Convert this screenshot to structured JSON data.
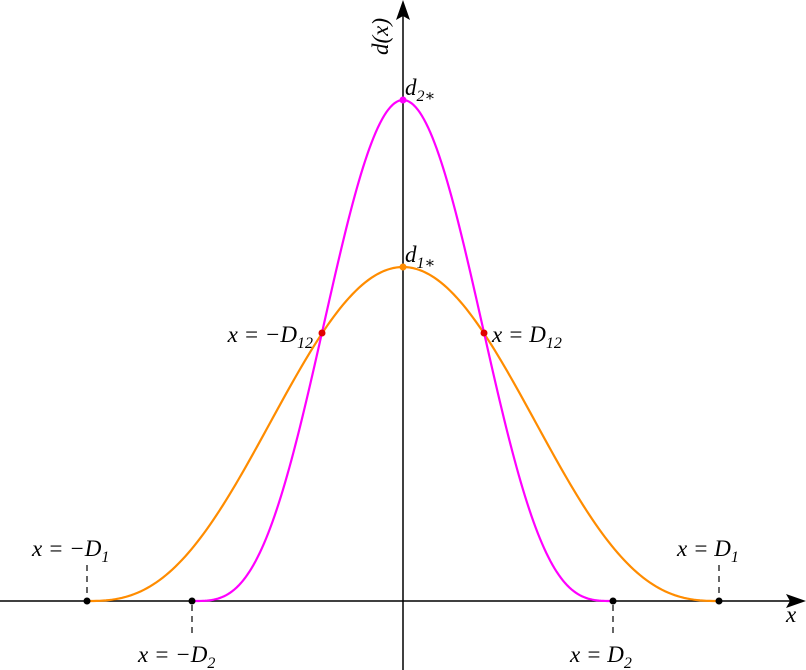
{
  "axes": {
    "x_label": "x",
    "y_label": "d(x)"
  },
  "peaks": [
    {
      "label": "d",
      "sub": "2∗"
    },
    {
      "label": "d",
      "sub": "1∗"
    }
  ],
  "intersections": [
    {
      "label": "x = −D",
      "sub": "12"
    },
    {
      "label": "x = D",
      "sub": "12"
    }
  ],
  "zeros": [
    {
      "label": "x = −D",
      "sub": "1"
    },
    {
      "label": "x = −D",
      "sub": "2"
    },
    {
      "label": "x = D",
      "sub": "2"
    },
    {
      "label": "x = D",
      "sub": "1"
    }
  ]
}
